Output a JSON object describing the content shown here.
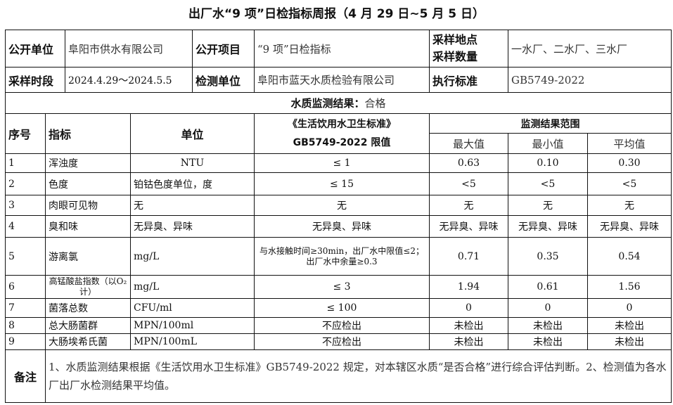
{
  "title": "出厂水“9 项”日检指标周报（4 月 29 日~5 月 5 日）",
  "info": {
    "pub_unit_label": "公开单位",
    "pub_unit": "阜阳市供水有限公司",
    "pub_item_label": "公开项目",
    "pub_item": "“9 项”日检指标",
    "site_label_1": "采样地点",
    "site_label_2": "采样数量",
    "site": "一水厂、二水厂、三水厂",
    "period_label": "采样时段",
    "period": "2024.4.29～2024.5.5",
    "lab_label": "检测单位",
    "lab": "阜阳市蓝天水质检验有限公司",
    "std_label": "执行标准",
    "std": "GB5749-2022"
  },
  "result": {
    "label": "水质监测结果：",
    "value": "合格"
  },
  "headers": {
    "no": "序号",
    "indicator": "指标",
    "unit": "单位",
    "limit_1": "《生活饮用水卫生标准》",
    "limit_2": "GB5749-2022 限值",
    "range": "监测结果范围",
    "max": "最大值",
    "min": "最小值",
    "avg": "平均值"
  },
  "rows": [
    {
      "no": "1",
      "name": "浑浊度",
      "unit": "NTU",
      "limit": "≤  1",
      "max": "0.63",
      "min": "0.10",
      "avg": "0.30"
    },
    {
      "no": "2",
      "name": "色度",
      "unit": "铂钴色度单位，度",
      "limit": "≤ 15",
      "max": "<5",
      "min": "<5",
      "avg": "<5"
    },
    {
      "no": "3",
      "name": "肉眼可见物",
      "unit": "无",
      "limit": "无",
      "max": "无",
      "min": "无",
      "avg": "无"
    },
    {
      "no": "4",
      "name": "臭和味",
      "unit": "无异臭、异味",
      "limit": "无异臭、异味",
      "max": "无异臭、异味",
      "min": "无异臭、异味",
      "avg": "无异臭、异味"
    },
    {
      "no": "5",
      "name": "游离氯",
      "unit": "mg/L",
      "limit": "与水接触时间≥30min，出厂水中限值≤2；出厂水中余量≥0.3",
      "max": "0.71",
      "min": "0.35",
      "avg": "0.54"
    },
    {
      "no": "6",
      "name": "高锰酸盐指数（以O₂计）",
      "unit": "mg/L",
      "limit": "≤ 3",
      "max": "1.94",
      "min": "0.61",
      "avg": "1.56"
    },
    {
      "no": "7",
      "name": "菌落总数",
      "unit": "CFU/ml",
      "limit": "≤ 100",
      "max": "0",
      "min": "0",
      "avg": "0"
    },
    {
      "no": "8",
      "name": "总大肠菌群",
      "unit": "MPN/100ml",
      "limit": "不应检出",
      "max": "未检出",
      "min": "未检出",
      "avg": "未检出"
    },
    {
      "no": "9",
      "name": "大肠埃希氏菌",
      "unit": "MPN/100mL",
      "limit": "不应检出",
      "max": "未检出",
      "min": "未检出",
      "avg": "未检出"
    }
  ],
  "remark": {
    "label": "备注",
    "text": "1、水质监测结果根据《生活饮用水卫生标准》GB5749-2022 规定，对本辖区水质“是否合格”进行综合评估判断。2、检测值为各水厂出厂水检测结果平均值。"
  }
}
